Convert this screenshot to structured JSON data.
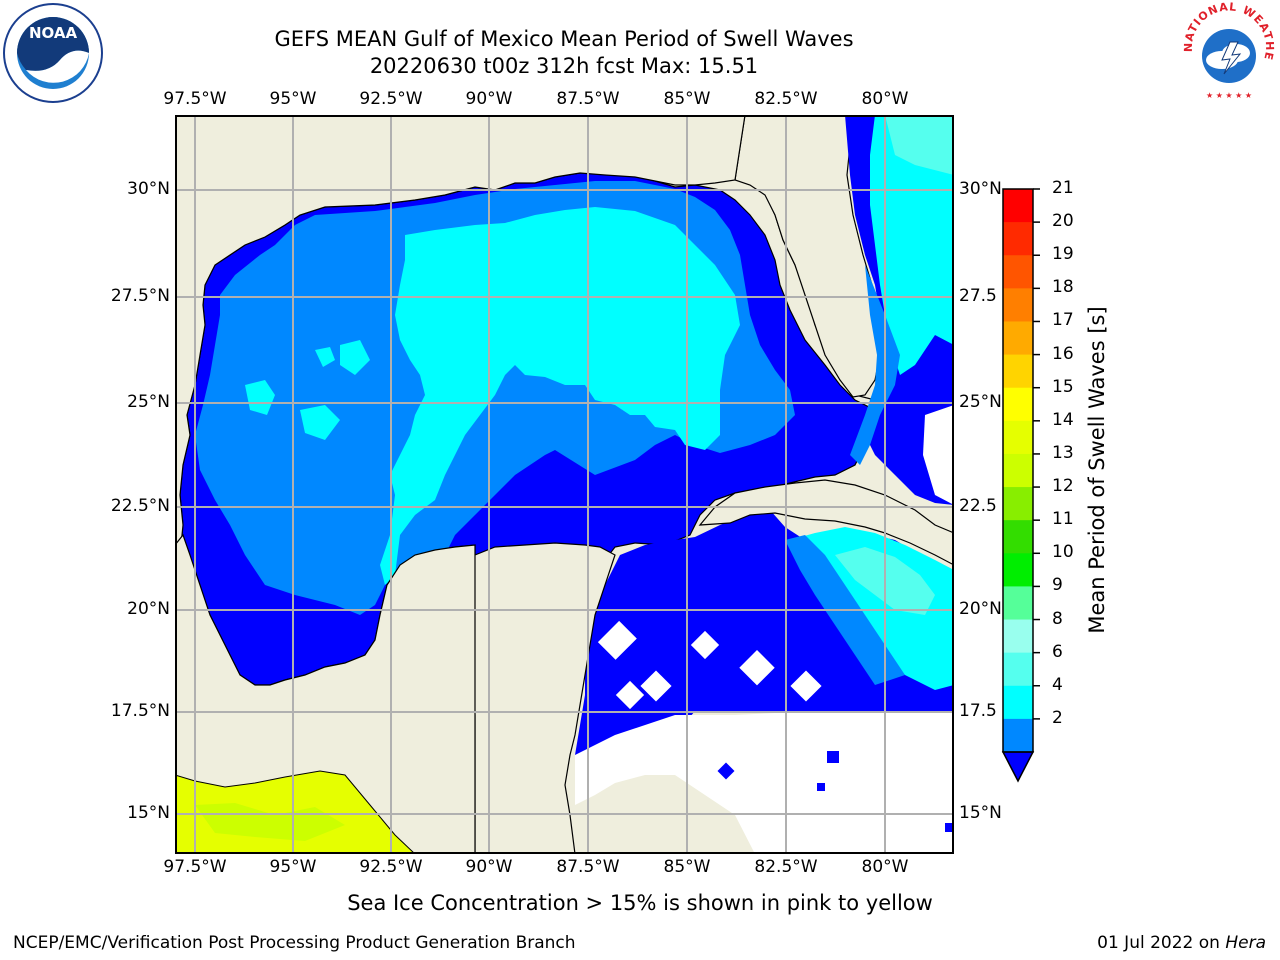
{
  "title": {
    "line1": "GEFS MEAN Gulf of Mexico Mean Period of Swell Waves",
    "line2": "20220630 t00z 312h fcst   Max: 15.51"
  },
  "map": {
    "lon_ticks": [
      "97.5°W",
      "95°W",
      "92.5°W",
      "90°W",
      "87.5°W",
      "85°W",
      "82.5°W",
      "80°W"
    ],
    "lat_ticks_left": [
      "30°N",
      "27.5°N",
      "25°N",
      "22.5°N",
      "20°N",
      "17.5°N",
      "15°N"
    ],
    "lat_ticks_right": [
      "30°N",
      "27.5",
      "25°N",
      "22.5",
      "20°N",
      "17.5",
      "15°N"
    ]
  },
  "colorbar": {
    "title": "Mean Period of Swell Waves [s]",
    "labels": [
      "21",
      "20",
      "19",
      "18",
      "17",
      "16",
      "15",
      "14",
      "13",
      "12",
      "11",
      "10",
      "9",
      "8",
      "6",
      "4",
      "2"
    ],
    "colors_top_to_bottom": [
      "#ff0000",
      "#ff2a00",
      "#ff5500",
      "#ff7f00",
      "#ffaa00",
      "#ffd400",
      "#ffff00",
      "#e5ff00",
      "#ccff00",
      "#88ee00",
      "#33dd00",
      "#00ee00",
      "#55ff99",
      "#99ffee",
      "#55ffee",
      "#00ffff",
      "#0088ff"
    ],
    "extend_color": "#0000ff"
  },
  "colors": {
    "land": "#efeedd",
    "c2": "#0000ff",
    "c4": "#0088ff",
    "c6": "#00ffff",
    "c8": "#55ffee",
    "ice": "#e5ff00",
    "grid": "#b0b0b0"
  },
  "caption": "Sea Ice Concentration > 15% is shown in pink to yellow",
  "footer": {
    "left": "NCEP/EMC/Verification Post Processing Product Generation Branch",
    "right_date": "01 Jul 2022 on ",
    "right_host": "Hera"
  },
  "logos": {
    "noaa_text": "NOAA",
    "nws_text": "NATIONAL WEATHER SERVICE"
  }
}
